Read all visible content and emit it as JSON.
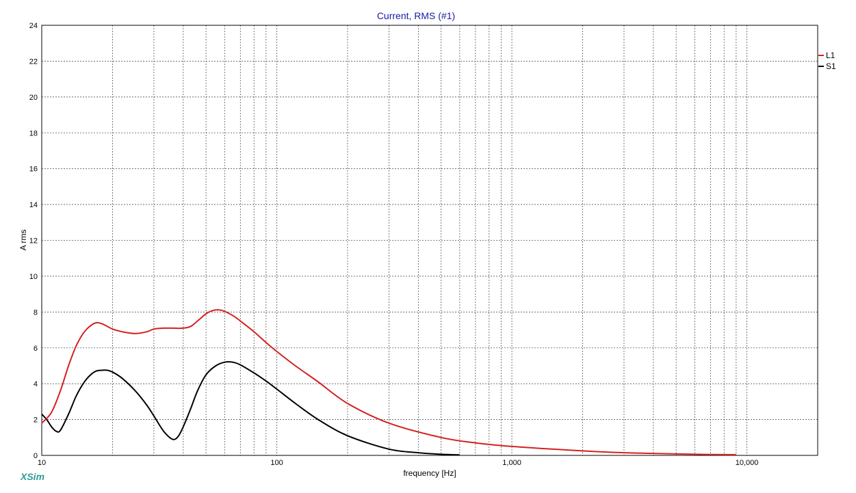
{
  "brand": "XSim",
  "chart_data": {
    "type": "line",
    "title": "Current, RMS (#1)",
    "xlabel": "frequency [Hz]",
    "ylabel": "A rms",
    "x_scale": "log",
    "xlim": [
      10,
      20000
    ],
    "ylim": [
      0,
      24
    ],
    "x_tick_values": [
      10,
      100,
      1000,
      10000
    ],
    "x_tick_labels": [
      "10",
      "100",
      "1,000",
      "10,000"
    ],
    "y_tick_values": [
      0,
      2,
      4,
      6,
      8,
      10,
      12,
      14,
      16,
      18,
      20,
      22,
      24
    ],
    "y_tick_labels": [
      "0",
      "2",
      "4",
      "6",
      "8",
      "10",
      "12",
      "14",
      "16",
      "18",
      "20",
      "22",
      "24"
    ],
    "grid": true,
    "legend_position": "right",
    "series": [
      {
        "name": "L1",
        "color": "#d42020",
        "x": [
          10,
          11,
          12,
          13,
          14,
          15,
          16,
          17,
          18,
          19,
          20,
          22,
          25,
          28,
          30,
          33,
          36,
          40,
          43,
          46,
          50,
          54,
          58,
          62,
          66,
          70,
          80,
          90,
          100,
          120,
          150,
          200,
          300,
          500,
          700,
          1000,
          2000,
          3000,
          5000,
          7000,
          9000
        ],
        "y": [
          1.8,
          2.4,
          3.6,
          5.0,
          6.1,
          6.8,
          7.2,
          7.4,
          7.35,
          7.2,
          7.05,
          6.9,
          6.8,
          6.9,
          7.05,
          7.1,
          7.1,
          7.1,
          7.2,
          7.5,
          7.9,
          8.1,
          8.1,
          7.95,
          7.75,
          7.5,
          6.9,
          6.3,
          5.8,
          5.0,
          4.1,
          2.9,
          1.8,
          1.0,
          0.7,
          0.5,
          0.25,
          0.15,
          0.08,
          0.05,
          0.04
        ]
      },
      {
        "name": "S1",
        "color": "#000000",
        "x": [
          10,
          10.5,
          11,
          11.5,
          12,
          13,
          14,
          15,
          16,
          17,
          18,
          19,
          20,
          22,
          25,
          28,
          30,
          33,
          36,
          38,
          40,
          43,
          46,
          50,
          55,
          60,
          65,
          70,
          80,
          90,
          100,
          120,
          150,
          200,
          300,
          400,
          500,
          600
        ],
        "y": [
          2.3,
          2.0,
          1.6,
          1.35,
          1.4,
          2.3,
          3.3,
          4.0,
          4.45,
          4.7,
          4.75,
          4.75,
          4.65,
          4.3,
          3.6,
          2.8,
          2.2,
          1.35,
          0.9,
          1.05,
          1.6,
          2.6,
          3.6,
          4.5,
          5.0,
          5.2,
          5.2,
          5.05,
          4.6,
          4.15,
          3.7,
          2.9,
          2.0,
          1.1,
          0.35,
          0.15,
          0.06,
          0.03
        ]
      }
    ]
  }
}
